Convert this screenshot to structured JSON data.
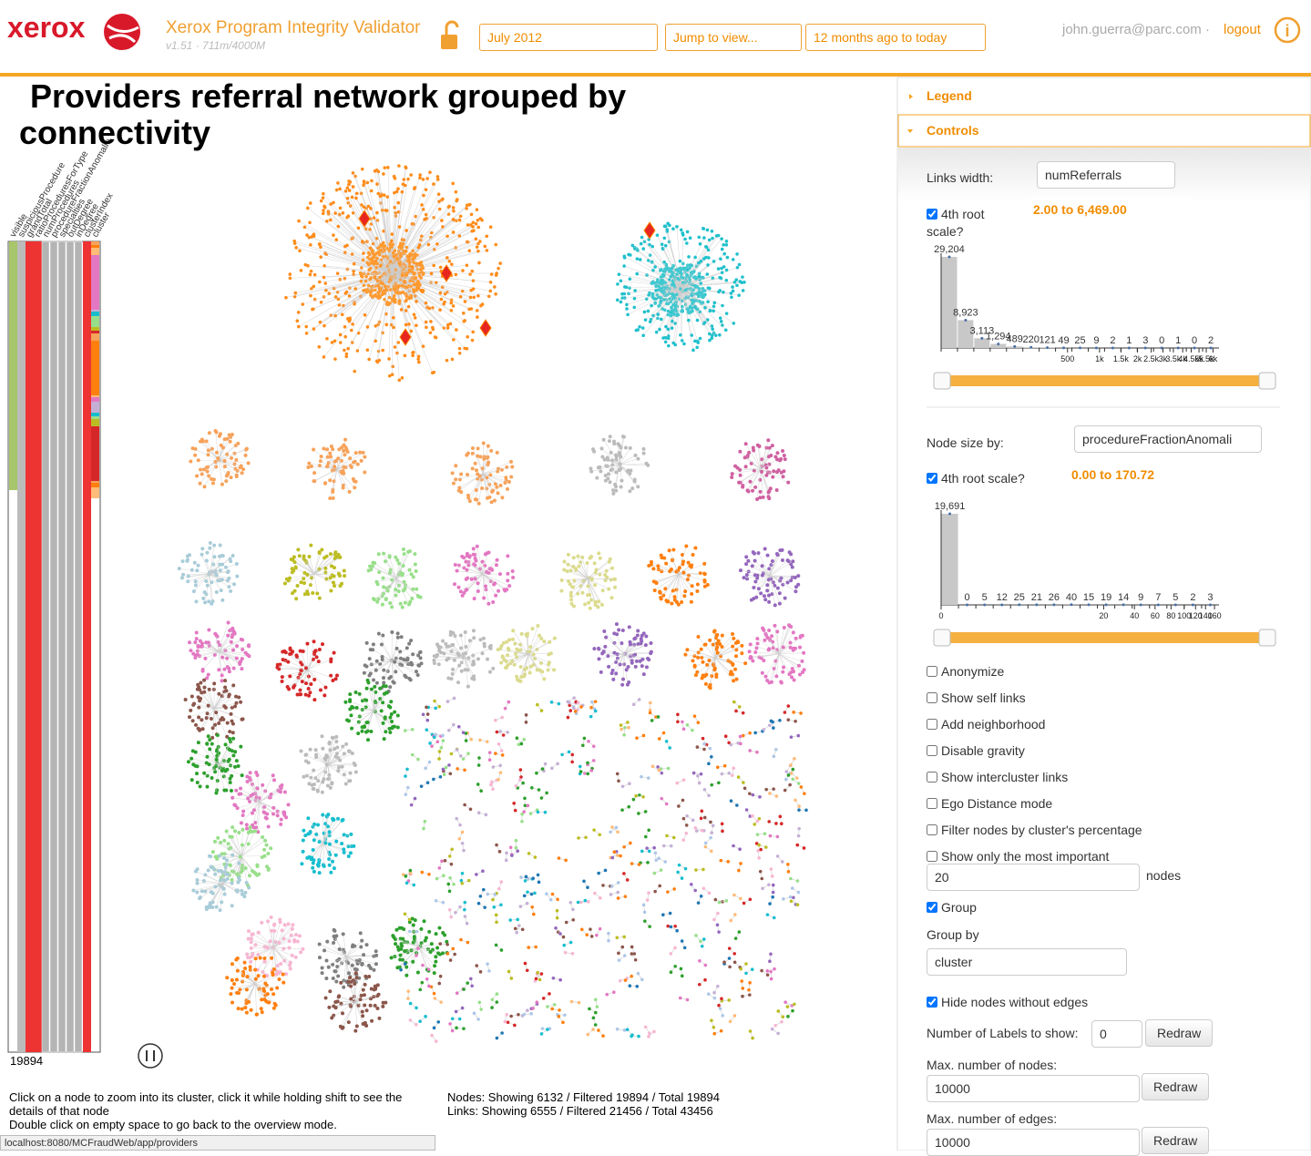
{
  "header": {
    "brand": "xerox",
    "app_title": "Xerox Program Integrity Validator",
    "version": "v1.51 · 711m/4000M",
    "month": "July 2012",
    "jump": "Jump to view...",
    "period": "12 months ago to today",
    "user": "john.guerra@parc.com ·",
    "logout": "logout"
  },
  "title": "Providers referral network grouped by connectivity",
  "matrix": {
    "columns": [
      "visible",
      "suspiciousProcedure",
      "grandTotal",
      "ratioProceduresForType",
      "numProcedures",
      "procedureFractionAnomalie",
      "specialties",
      "outDegree",
      "inDegree",
      "clusterIndex",
      "cluster"
    ],
    "count": 19894
  },
  "help": [
    "Click on a node to zoom into its cluster, click it while holding shift to see the details of that node",
    "Double click on empty space to go back to the overview mode."
  ],
  "stats": [
    "Nodes: Showing 6132 / Filtered 19894 / Total 19894",
    "Links: Showing 6555 / Filtered 21456 / Total 43456"
  ],
  "status_url": "localhost:8080/MCFraudWeb/app/providers",
  "sidebar": {
    "legend": "Legend",
    "controls": "Controls",
    "links_width": {
      "label": "Links width:",
      "value": "numReferrals",
      "scale_label": "4th root scale?",
      "scale_checked": true,
      "range": "2.00 to 6,469.00",
      "histogram": {
        "type": "histogram",
        "counts": [
          29204,
          8923,
          3113,
          1294,
          489,
          220,
          121,
          49,
          25,
          9,
          2,
          1,
          3,
          0,
          1,
          0,
          2
        ],
        "value_labels": [
          "29,204",
          "8,923",
          "3,113",
          "1,294",
          null,
          null,
          null,
          null,
          null,
          null,
          null,
          null,
          null,
          null,
          null,
          null,
          null
        ],
        "xlim": [
          2,
          6469
        ],
        "xticks": [
          500,
          {
            "value": 1000,
            "label": "1k"
          },
          {
            "value": 1500,
            "label": "1.5k"
          },
          {
            "value": 2000,
            "label": "2k"
          },
          {
            "value": 2500,
            "label": "2.5k"
          },
          {
            "value": 3000,
            "label": "3k"
          },
          {
            "value": 3500,
            "label": "3.5k"
          },
          {
            "value": 4000,
            "label": "4k"
          },
          {
            "value": 4500,
            "label": "4.5k"
          },
          {
            "value": 5000,
            "label": "5k"
          },
          {
            "value": 5500,
            "label": "5.5k"
          },
          {
            "value": 6000,
            "label": "6k"
          }
        ],
        "color": "#c8c8c8"
      }
    },
    "node_size": {
      "label": "Node size by:",
      "value": "procedureFractionAnomali",
      "scale_label": "4th root scale?",
      "scale_checked": true,
      "range": "0.00 to 170.72",
      "histogram": {
        "type": "histogram",
        "counts": [
          19691,
          0,
          5,
          12,
          25,
          21,
          26,
          40,
          15,
          19,
          14,
          9,
          7,
          5,
          2,
          3
        ],
        "value_labels": [
          "19,691",
          null,
          null,
          null,
          null,
          null,
          null,
          null,
          null,
          null,
          null,
          null,
          null,
          null,
          null,
          null
        ],
        "xlim": [
          0,
          170.72
        ],
        "xticks": [
          0,
          20,
          40,
          60,
          80,
          100,
          120,
          140,
          160
        ],
        "color": "#c8c8c8"
      }
    },
    "options": [
      {
        "label": "Anonymize",
        "checked": false
      },
      {
        "label": "Show self links",
        "checked": false
      },
      {
        "label": "Add neighborhood",
        "checked": false
      },
      {
        "label": "Disable gravity",
        "checked": false
      },
      {
        "label": "Show intercluster links",
        "checked": false
      },
      {
        "label": "Ego Distance mode",
        "checked": false
      },
      {
        "label": "Filter nodes by cluster's percentage",
        "checked": false
      },
      {
        "label": "Show only the most important",
        "checked": false
      }
    ],
    "important_count": "20",
    "important_unit": "nodes",
    "group": {
      "label": "Group",
      "checked": true
    },
    "group_by_label": "Group by",
    "group_by": "cluster",
    "hide_nodes": {
      "label": "Hide nodes without edges",
      "checked": true
    },
    "labels_count": {
      "label": "Number of Labels to show:",
      "value": "0",
      "button": "Redraw"
    },
    "max_nodes": {
      "label": "Max. number of nodes:",
      "value": "10000",
      "button": "Redraw"
    },
    "max_edges": {
      "label": "Max. number of edges:",
      "value": "10000",
      "button": "Redraw"
    }
  }
}
